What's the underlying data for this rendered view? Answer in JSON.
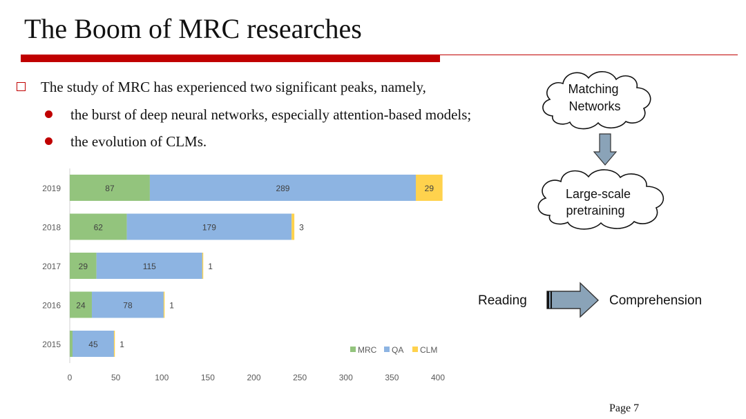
{
  "slide": {
    "title": "The Boom of MRC researches",
    "main_bullet": "The study of MRC has experienced two significant peaks, namely,",
    "sub_bullets": [
      "the burst of deep neural networks, especially attention-based models;",
      "the evolution of CLMs."
    ],
    "page": "Page 7",
    "accent_color": "#c00000"
  },
  "diagram": {
    "cloud_top": [
      "Matching",
      "Networks"
    ],
    "cloud_bottom": [
      "Large-scale",
      "pretraining"
    ],
    "reading": "Reading",
    "comprehension": "Comprehension"
  },
  "chart_data": {
    "type": "bar",
    "orientation": "horizontal",
    "stacked": true,
    "categories": [
      "2019",
      "2018",
      "2017",
      "2016",
      "2015"
    ],
    "series": [
      {
        "name": "MRC",
        "values": [
          87,
          62,
          29,
          24,
          3
        ],
        "color": "#93c47d"
      },
      {
        "name": "QA",
        "values": [
          289,
          179,
          115,
          78,
          45
        ],
        "color": "#8db4e2"
      },
      {
        "name": "CLM",
        "values": [
          29,
          3,
          1,
          1,
          1
        ],
        "color": "#ffd24d"
      }
    ],
    "xlim": [
      0,
      400
    ],
    "xticks": [
      0,
      50,
      100,
      150,
      200,
      250,
      300,
      350,
      400
    ],
    "grid": false,
    "legend": "bottom-right",
    "data_labels": true
  }
}
